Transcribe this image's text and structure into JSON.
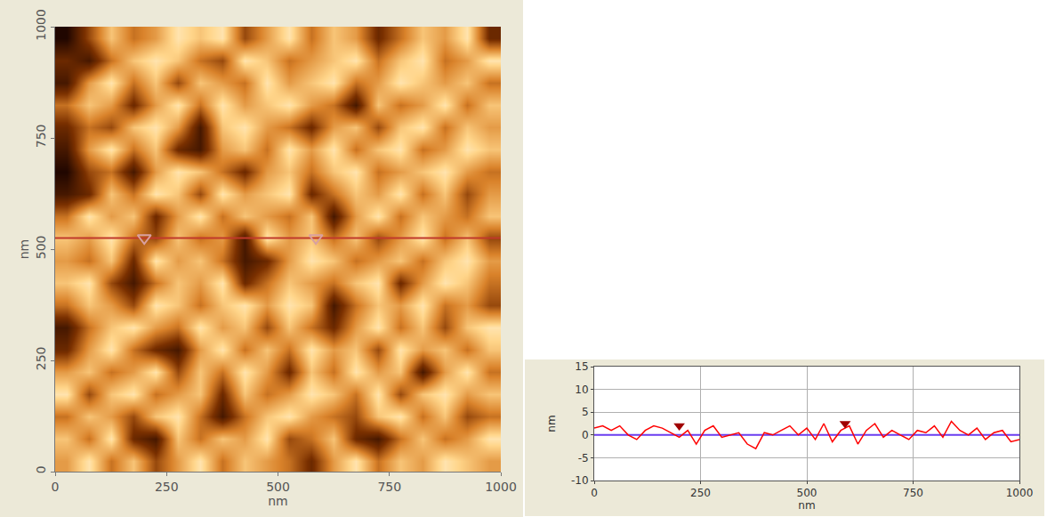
{
  "chart_data": [
    {
      "type": "heatmap",
      "x_label": "nm",
      "y_label": "nm",
      "x": [
        25,
        75,
        125,
        175,
        225,
        275,
        325,
        375,
        425,
        475,
        525,
        575,
        625,
        675,
        725,
        775,
        825,
        875,
        925,
        975
      ],
      "y": [
        25,
        75,
        125,
        175,
        225,
        275,
        325,
        375,
        425,
        475,
        525,
        575,
        625,
        675,
        725,
        775,
        825,
        875,
        925,
        975
      ],
      "z": [
        [
          1,
          3,
          0,
          2,
          -1,
          1,
          3,
          0,
          2,
          1,
          0,
          -2,
          1,
          3,
          0,
          2,
          1,
          3,
          2,
          1
        ],
        [
          2,
          0,
          3,
          -2,
          -3,
          2,
          0,
          2,
          1,
          3,
          -1,
          0,
          2,
          -2,
          -3,
          0,
          2,
          0,
          1,
          3
        ],
        [
          0,
          2,
          1,
          -1,
          2,
          3,
          0,
          -3,
          0,
          2,
          3,
          1,
          0,
          -1,
          2,
          3,
          0,
          2,
          -1,
          0
        ],
        [
          3,
          -1,
          2,
          3,
          0,
          1,
          2,
          -2,
          2,
          0,
          1,
          3,
          2,
          0,
          3,
          -1,
          2,
          3,
          1,
          2
        ],
        [
          1,
          2,
          0,
          1,
          3,
          -1,
          2,
          0,
          3,
          1,
          -2,
          2,
          0,
          3,
          1,
          2,
          -3,
          1,
          3,
          0
        ],
        [
          -2,
          1,
          3,
          0,
          -2,
          -3,
          1,
          3,
          0,
          2,
          0,
          3,
          1,
          2,
          -1,
          3,
          1,
          2,
          0,
          2
        ],
        [
          -3,
          0,
          2,
          3,
          1,
          0,
          3,
          1,
          2,
          -1,
          2,
          0,
          -2,
          1,
          3,
          0,
          2,
          -1,
          2,
          3
        ],
        [
          0,
          2,
          1,
          -1,
          3,
          2,
          0,
          2,
          3,
          1,
          3,
          2,
          -3,
          0,
          2,
          1,
          3,
          0,
          1,
          -1
        ],
        [
          2,
          3,
          -1,
          -3,
          0,
          2,
          1,
          3,
          -2,
          0,
          2,
          1,
          0,
          2,
          3,
          -2,
          1,
          3,
          2,
          0
        ],
        [
          1,
          0,
          2,
          -2,
          3,
          1,
          2,
          0,
          -3,
          -2,
          1,
          3,
          2,
          0,
          1,
          2,
          0,
          2,
          3,
          1
        ],
        [
          2,
          1,
          3,
          0,
          -1,
          2,
          0,
          1,
          -3,
          3,
          1,
          2,
          0,
          2,
          -1,
          1,
          3,
          0,
          2,
          -1
        ],
        [
          0,
          3,
          1,
          2,
          -2,
          1,
          3,
          0,
          2,
          1,
          0,
          2,
          -3,
          1,
          3,
          0,
          2,
          1,
          0,
          2
        ],
        [
          -3,
          -2,
          2,
          0,
          3,
          2,
          -1,
          3,
          1,
          2,
          3,
          -2,
          0,
          2,
          1,
          3,
          0,
          2,
          -1,
          1
        ],
        [
          -4,
          -1,
          0,
          -3,
          1,
          3,
          2,
          0,
          -2,
          1,
          2,
          0,
          2,
          3,
          0,
          1,
          2,
          3,
          1,
          0
        ],
        [
          -3,
          1,
          3,
          0,
          2,
          -2,
          -3,
          1,
          2,
          0,
          3,
          1,
          3,
          0,
          2,
          3,
          0,
          1,
          3,
          2
        ],
        [
          -2,
          0,
          -1,
          2,
          3,
          1,
          -3,
          2,
          3,
          1,
          0,
          -2,
          1,
          2,
          -1,
          2,
          3,
          0,
          2,
          1
        ],
        [
          0,
          2,
          1,
          -2,
          1,
          3,
          0,
          3,
          1,
          2,
          3,
          1,
          0,
          -3,
          2,
          0,
          1,
          3,
          0,
          2
        ],
        [
          -3,
          1,
          3,
          0,
          2,
          -1,
          2,
          1,
          0,
          3,
          1,
          2,
          3,
          0,
          1,
          3,
          2,
          1,
          2,
          0
        ],
        [
          -2,
          -3,
          0,
          2,
          3,
          2,
          0,
          -1,
          3,
          2,
          0,
          1,
          2,
          3,
          0,
          2,
          3,
          0,
          1,
          3
        ],
        [
          -4,
          -1,
          2,
          0,
          1,
          3,
          2,
          3,
          -1,
          1,
          3,
          0,
          2,
          1,
          -2,
          0,
          2,
          1,
          3,
          -2
        ]
      ],
      "zlim": [
        -4,
        4
      ],
      "xlim": [
        0,
        1000
      ],
      "ylim": [
        0,
        1000
      ],
      "xticks": [
        0,
        250,
        500,
        750,
        1000
      ],
      "yticks": [
        0,
        250,
        500,
        750,
        1000
      ],
      "section_y": 525,
      "section_color": "#c0392b",
      "markers_x": [
        200,
        585
      ]
    },
    {
      "type": "line",
      "x_label": "nm",
      "y_label": "nm",
      "x": [
        0,
        20,
        40,
        60,
        80,
        100,
        120,
        140,
        160,
        180,
        200,
        220,
        240,
        260,
        280,
        300,
        320,
        340,
        360,
        380,
        400,
        420,
        440,
        460,
        480,
        500,
        520,
        540,
        560,
        580,
        600,
        620,
        640,
        660,
        680,
        700,
        720,
        740,
        760,
        780,
        800,
        820,
        840,
        860,
        880,
        900,
        920,
        940,
        960,
        980,
        1000
      ],
      "values": [
        1.5,
        2,
        1,
        2,
        0,
        -1,
        1,
        2,
        1.5,
        0.5,
        -0.5,
        1,
        -2,
        1,
        2,
        -0.5,
        0,
        0.5,
        -2,
        -3,
        0.5,
        0,
        1,
        2,
        0,
        1.5,
        -1,
        2.5,
        -1.5,
        1,
        2,
        -2,
        1,
        2.5,
        -0.5,
        1,
        0,
        -1,
        1,
        0.5,
        2,
        -0.5,
        3,
        1,
        0,
        1.5,
        -1,
        0.5,
        1,
        -1.5,
        -1
      ],
      "color": "#ff0000",
      "xlim": [
        0,
        1000
      ],
      "ylim": [
        -10,
        15
      ],
      "xticks": [
        0,
        250,
        500,
        750,
        1000
      ],
      "yticks": [
        -10,
        -5,
        0,
        5,
        10,
        15
      ],
      "grid": true,
      "reference_line": 0,
      "reference_color": "#6a3df0",
      "markers": [
        {
          "x": 200,
          "y": 2
        },
        {
          "x": 590,
          "y": 2.5
        }
      ],
      "marker_color": "#a00000"
    }
  ]
}
